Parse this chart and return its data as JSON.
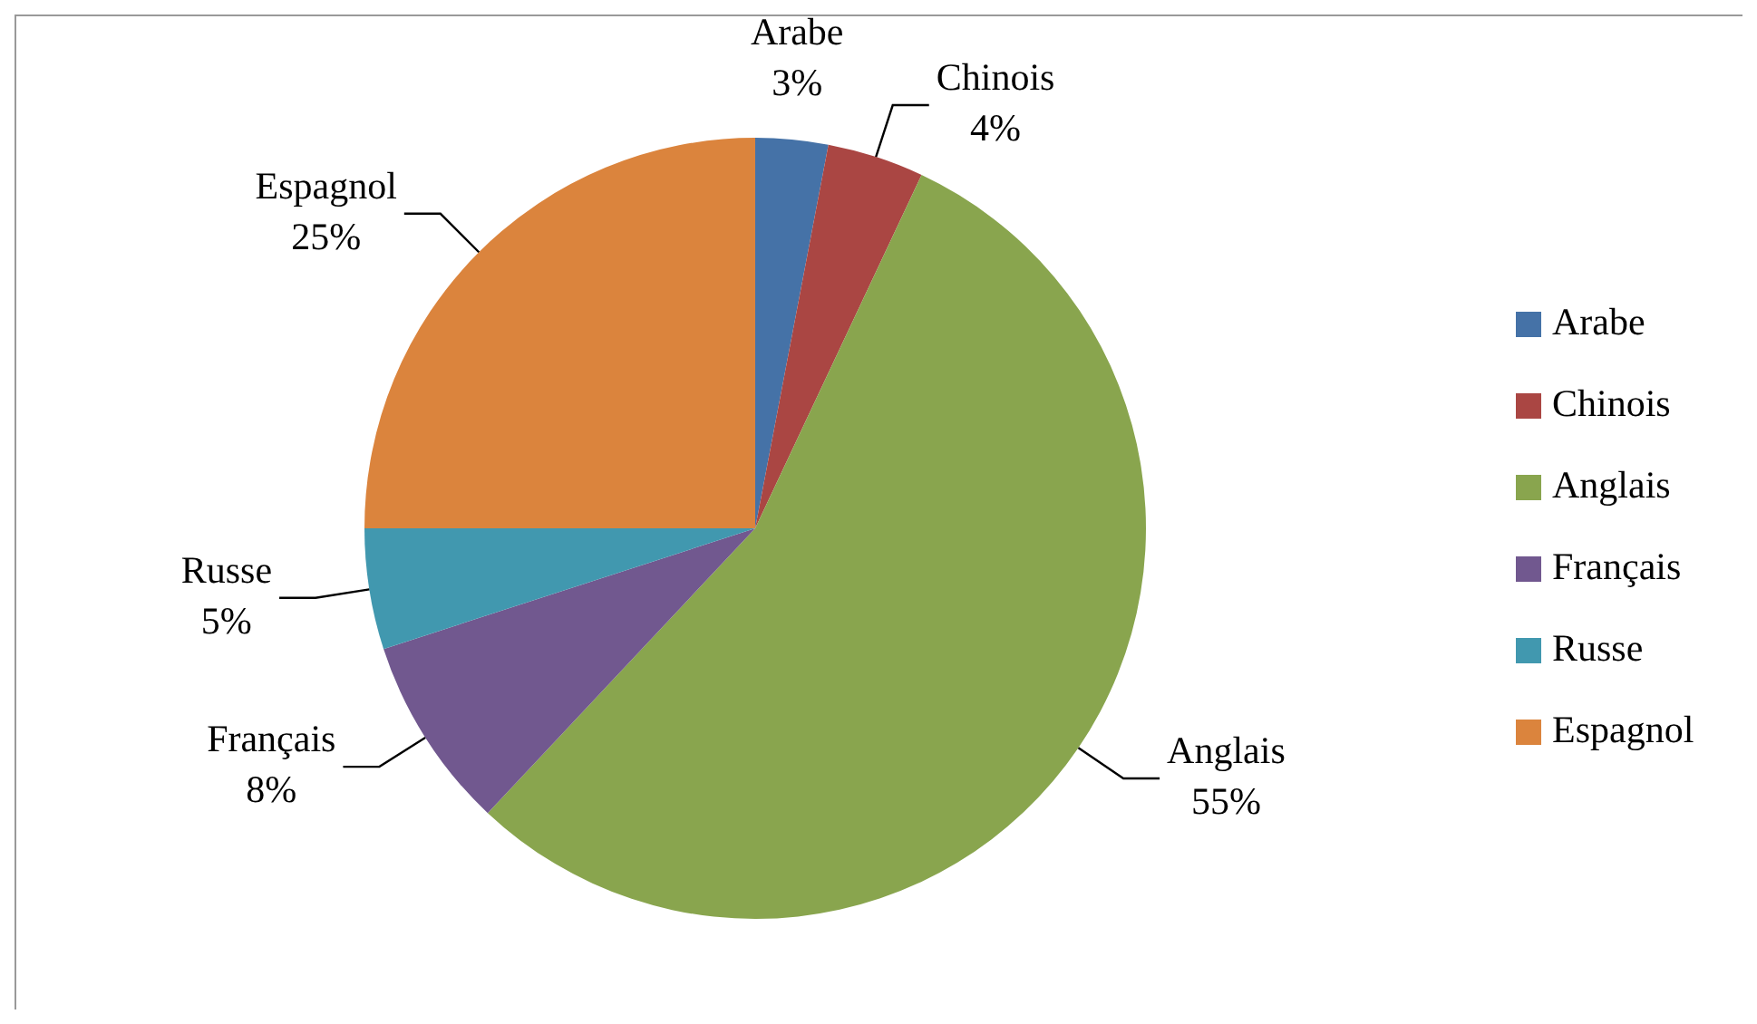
{
  "chart_data": {
    "type": "pie",
    "categories": [
      "Arabe",
      "Chinois",
      "Anglais",
      "Français",
      "Russe",
      "Espagnol"
    ],
    "values": [
      3,
      4,
      55,
      8,
      5,
      25
    ],
    "value_labels": [
      "3%",
      "4%",
      "55%",
      "8%",
      "5%",
      "25%"
    ],
    "colors": [
      "#4572a7",
      "#aa4643",
      "#89a54e",
      "#71588f",
      "#4198af",
      "#db843d"
    ],
    "legend": "right"
  }
}
